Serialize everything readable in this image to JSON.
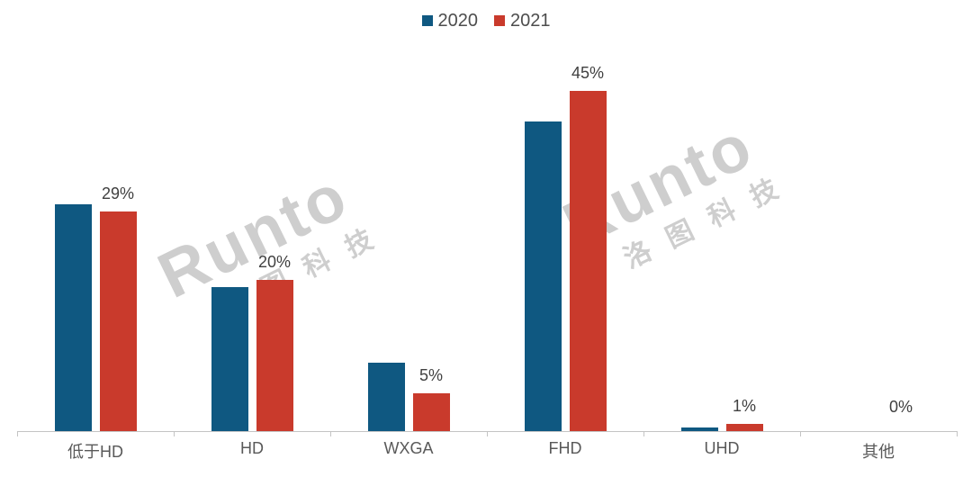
{
  "chart": {
    "watermark": {
      "brand": "Runto",
      "cn": "洛图科技"
    }
  },
  "chart_data": {
    "type": "bar",
    "title": "",
    "categories": [
      "低于HD",
      "HD",
      "WXGA",
      "FHD",
      "UHD",
      "其他"
    ],
    "series": [
      {
        "name": "2020",
        "color": "#0F5881",
        "values": [
          30,
          19,
          9,
          41,
          0.5,
          0
        ]
      },
      {
        "name": "2021",
        "color": "#C93A2C",
        "values": [
          29,
          20,
          5,
          45,
          1,
          0
        ],
        "data_labels": [
          "29%",
          "20%",
          "5%",
          "45%",
          "1%",
          "0%"
        ]
      }
    ],
    "xlabel": "",
    "ylabel": "",
    "ylim": [
      0,
      50
    ],
    "grid": false,
    "legend_position": "top-center",
    "legend": [
      "2020",
      "2021"
    ],
    "axis_color": "#C4C4C4",
    "label_color": "#404040",
    "watermark_color": "#C9C9C9"
  }
}
